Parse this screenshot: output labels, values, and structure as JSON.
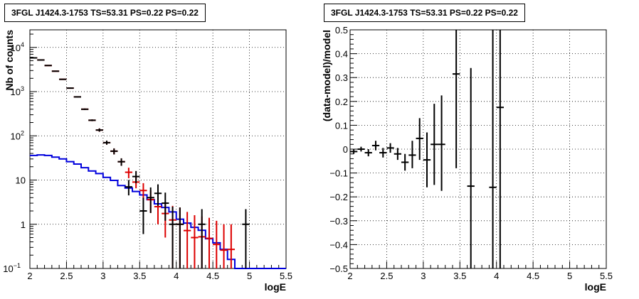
{
  "chart_data": [
    {
      "type": "histogram",
      "title": "3FGL J1424.3-1753 TS=53.31 PS=0.22 PS=0.22",
      "xlabel": "logE",
      "ylabel": "Nb of counts",
      "xlim": [
        2,
        5.5
      ],
      "ylim": [
        0.1,
        25000
      ],
      "yscale": "log",
      "grid": true,
      "xticks": [
        "2",
        "2.5",
        "3",
        "3.5",
        "4",
        "4.5",
        "5",
        "5.5"
      ],
      "yticks": [
        {
          "v": 0.1,
          "label": "10",
          "exp": "−1"
        },
        {
          "v": 1,
          "label": "1",
          "exp": ""
        },
        {
          "v": 10,
          "label": "10",
          "exp": ""
        },
        {
          "v": 100,
          "label": "10",
          "exp": "2"
        },
        {
          "v": 1000,
          "label": "10",
          "exp": "3"
        },
        {
          "v": 10000,
          "label": "10",
          "exp": "4"
        }
      ],
      "series": [
        {
          "style": "step-line",
          "color": "#0000dd",
          "bin_width": 0.1,
          "x": [
            2.0,
            2.1,
            2.2,
            2.3,
            2.4,
            2.5,
            2.6,
            2.7,
            2.8,
            2.9,
            3.0,
            3.1,
            3.2,
            3.3,
            3.4,
            3.5,
            3.6,
            3.7,
            3.8,
            3.9,
            4.0,
            4.1,
            4.2,
            4.3,
            4.4,
            4.5,
            4.6,
            4.7,
            4.8,
            4.9,
            5.0,
            5.1,
            5.2,
            5.3,
            5.4
          ],
          "y": [
            36,
            37,
            36,
            33,
            30,
            26,
            23,
            19,
            16,
            14,
            11.5,
            9.8,
            7.5,
            6.6,
            5.5,
            4.6,
            3.6,
            2.9,
            2.4,
            1.9,
            1.3,
            1.06,
            0.85,
            0.73,
            0.47,
            0.38,
            0.27,
            0.16,
            0.1,
            0.1,
            0.1,
            0.1,
            0.1,
            0.1,
            0.1
          ]
        },
        {
          "style": "error-bars",
          "color": "#dd0000",
          "bin_width": 0.1,
          "x": [
            2.05,
            2.15,
            2.25,
            2.35,
            2.45,
            2.55,
            2.65,
            2.75,
            2.85,
            2.95,
            3.05,
            3.15,
            3.25,
            3.35,
            3.45,
            3.55,
            3.65,
            3.75,
            3.85,
            3.95,
            4.05,
            4.15,
            4.25,
            4.35,
            4.45,
            4.55,
            4.65,
            4.75
          ],
          "y": [
            5800,
            5200,
            3900,
            2900,
            1900,
            1200,
            760,
            400,
            225,
            135,
            70,
            45,
            26,
            15,
            9,
            5.8,
            3.6,
            2.5,
            1.75,
            1.25,
            1.0,
            0.72,
            0.5,
            0.52,
            0.48,
            0.35,
            0.26,
            0.27
          ],
          "ylo": [
            5650,
            5050,
            3800,
            2830,
            1850,
            1160,
            735,
            385,
            215,
            124,
            63,
            38,
            21,
            11,
            6.5,
            3.6,
            1.8,
            1.0,
            0.5,
            0.1,
            0.1,
            0.1,
            0.1,
            0.1,
            0.1,
            0.1,
            0.1,
            0.1
          ],
          "yhi": [
            5950,
            5350,
            4000,
            2970,
            1950,
            1240,
            785,
            415,
            235,
            147,
            78,
            52,
            31,
            19,
            12,
            8.5,
            5.8,
            4.2,
            3.2,
            2.6,
            2.4,
            1.9,
            1.6,
            1.5,
            1.4,
            1.2,
            1.0,
            1.0
          ]
        },
        {
          "style": "error-bars",
          "color": "#000000",
          "bin_width": 0.1,
          "x": [
            2.05,
            2.15,
            2.25,
            2.35,
            2.45,
            2.55,
            2.65,
            2.75,
            2.85,
            2.95,
            3.05,
            3.15,
            3.25,
            3.35,
            3.45,
            3.55,
            3.65,
            3.75,
            3.85,
            3.95,
            4.05,
            4.35,
            4.95
          ],
          "y": [
            5800,
            5200,
            3900,
            2900,
            1900,
            1200,
            760,
            400,
            225,
            135,
            70,
            45,
            26,
            7,
            12,
            2,
            4,
            5,
            3,
            1,
            1,
            1,
            1
          ],
          "ylo": [
            5650,
            5050,
            3800,
            2830,
            1850,
            1160,
            735,
            385,
            215,
            124,
            63,
            38,
            21,
            4.5,
            8.5,
            0.6,
            1.8,
            2.6,
            1.2,
            0.1,
            0.1,
            0.1,
            0.1
          ],
          "yhi": [
            5950,
            5350,
            4000,
            2970,
            1950,
            1240,
            785,
            415,
            235,
            147,
            78,
            52,
            31,
            10,
            16,
            4,
            6.8,
            8,
            5.2,
            2.5,
            2.4,
            2.2,
            2.2
          ]
        }
      ]
    },
    {
      "type": "scatter",
      "title": "3FGL J1424.3-1753 TS=53.31 PS=0.22 PS=0.22",
      "xlabel": "logE",
      "ylabel": "(data-model)/model",
      "xlim": [
        2,
        5.5
      ],
      "ylim": [
        -0.5,
        0.5
      ],
      "grid": true,
      "xticks": [
        "2",
        "2.5",
        "3",
        "3.5",
        "4",
        "4.5",
        "5",
        "5.5"
      ],
      "yticks": [
        "−0.5",
        "−0.4",
        "−0.3",
        "−0.2",
        "−0.1",
        "0",
        "0.1",
        "0.2",
        "0.3",
        "0.4",
        "0.5"
      ],
      "series": [
        {
          "style": "error-bars",
          "color": "#000000",
          "bin_width": 0.1,
          "x": [
            2.05,
            2.15,
            2.25,
            2.35,
            2.45,
            2.55,
            2.65,
            2.75,
            2.85,
            2.95,
            3.05,
            3.15,
            3.25,
            3.45,
            3.65,
            3.95,
            4.05
          ],
          "y": [
            -0.01,
            0.0,
            -0.015,
            0.015,
            -0.015,
            0.005,
            -0.02,
            -0.055,
            -0.025,
            0.045,
            -0.045,
            0.02,
            0.02,
            0.315,
            -0.155,
            -0.16,
            0.175
          ],
          "ylo": [
            -0.02,
            -0.01,
            -0.03,
            -0.005,
            -0.035,
            -0.015,
            -0.045,
            -0.09,
            -0.08,
            -0.045,
            -0.16,
            -0.15,
            -0.175,
            -0.08,
            -0.5,
            -0.5,
            -0.5
          ],
          "yhi": [
            0.0,
            0.01,
            0.0,
            0.035,
            0.005,
            0.025,
            0.005,
            -0.02,
            0.035,
            0.13,
            0.07,
            0.19,
            0.225,
            0.5,
            0.34,
            0.5,
            0.5
          ]
        }
      ]
    }
  ]
}
